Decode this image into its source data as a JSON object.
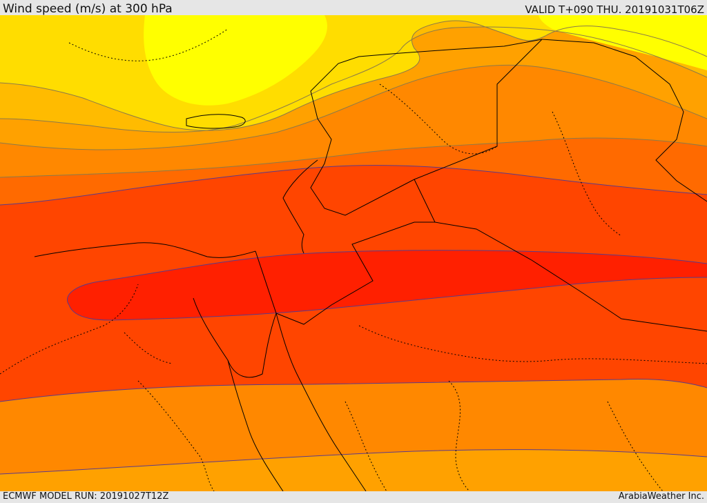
{
  "header": {
    "title": "Wind speed (m/s) at 300 hPa",
    "valid": "VALID T+090 THU. 20191031T06Z"
  },
  "footer": {
    "model_run": "ECMWF MODEL RUN: 20191027T12Z",
    "credit": "ArabiaWeather Inc."
  },
  "map": {
    "colors": {
      "band_1": "#ffff00",
      "band_2": "#ffdd00",
      "band_3": "#ffbb00",
      "band_4": "#ffa100",
      "band_5": "#ff8800",
      "band_6": "#ff6a00",
      "band_7": "#ff4500",
      "band_8": "#ff2000",
      "contour_light": "#8a7a4a",
      "contour_dark": "#5a3a8a",
      "border": "#000000"
    }
  }
}
